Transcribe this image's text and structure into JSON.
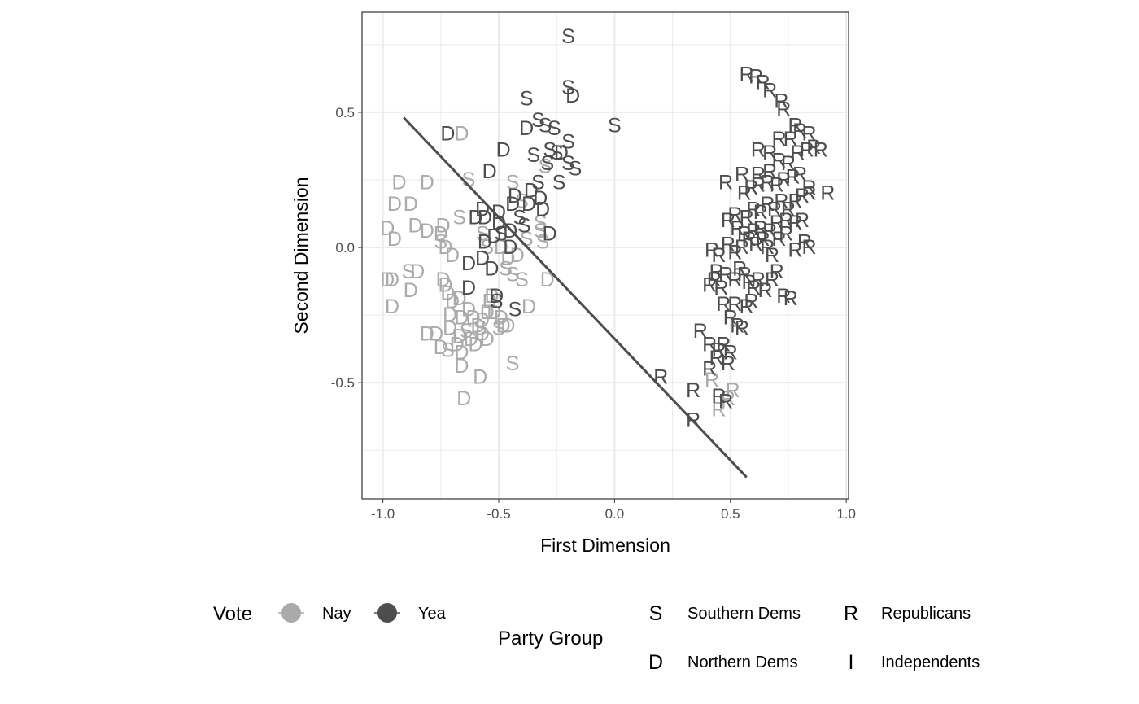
{
  "chart_data": {
    "type": "scatter",
    "title": "",
    "xlabel": "First Dimension",
    "ylabel": "Second Dimension",
    "xlim": [
      -1.09,
      1.01
    ],
    "ylim": [
      -0.93,
      0.87
    ],
    "xticks": [
      -1.0,
      -0.5,
      0.0,
      0.5,
      1.0
    ],
    "xtick_labels": [
      "-1.0",
      "-0.5",
      "0.0",
      "0.5",
      "1.0"
    ],
    "yticks": [
      -0.5,
      0.0,
      0.5
    ],
    "ytick_labels": [
      "-0.5",
      "0.0",
      "0.5"
    ],
    "grid": true,
    "colors": {
      "Nay": "#aaaaaa",
      "Yea": "#4d4d4d",
      "line": "#4d4d4d",
      "panel_border": "#333333",
      "grid": "#ebebeb"
    },
    "cutting_line": [
      [
        -0.91,
        0.48
      ],
      [
        0.57,
        -0.85
      ]
    ],
    "legend": {
      "position": "bottom",
      "vote": {
        "title": "Vote",
        "items": [
          "Nay",
          "Yea"
        ]
      },
      "party": {
        "title": "Party Group",
        "items": [
          {
            "symbol": "S",
            "label": "Southern Dems"
          },
          {
            "symbol": "R",
            "label": "Republicans"
          },
          {
            "symbol": "D",
            "label": "Northern Dems"
          },
          {
            "symbol": "I",
            "label": "Independents"
          }
        ]
      }
    },
    "series": [
      {
        "name": "Nay",
        "color": "#aaaaaa",
        "points": [
          [
            "D",
            -0.66,
            0.42
          ],
          [
            "D",
            -0.93,
            0.24
          ],
          [
            "D",
            -0.81,
            0.24
          ],
          [
            "S",
            -0.63,
            0.25
          ],
          [
            "D",
            -0.95,
            0.16
          ],
          [
            "D",
            -0.88,
            0.16
          ],
          [
            "S",
            -0.67,
            0.11
          ],
          [
            "D",
            -0.75,
            0.05
          ],
          [
            "D",
            -0.74,
            0.08
          ],
          [
            "D",
            -0.86,
            0.08
          ],
          [
            "D",
            -0.98,
            0.07
          ],
          [
            "D",
            -0.95,
            0.03
          ],
          [
            "D",
            -0.81,
            0.06
          ],
          [
            "D",
            -0.73,
            0.0
          ],
          [
            "S",
            -0.75,
            0.02
          ],
          [
            "D",
            -0.7,
            -0.03
          ],
          [
            "S",
            -0.89,
            -0.09
          ],
          [
            "D",
            -0.85,
            -0.09
          ],
          [
            "D",
            -0.96,
            -0.12
          ],
          [
            "D",
            -0.98,
            -0.12
          ],
          [
            "D",
            -0.88,
            -0.16
          ],
          [
            "D",
            -0.96,
            -0.22
          ],
          [
            "D",
            -0.74,
            -0.12
          ],
          [
            "D",
            -0.73,
            -0.14
          ],
          [
            "D",
            -0.72,
            -0.17
          ],
          [
            "D",
            -0.7,
            -0.2
          ],
          [
            "D",
            -0.67,
            -0.19
          ],
          [
            "D",
            -0.71,
            -0.25
          ],
          [
            "D",
            -0.66,
            -0.26
          ],
          [
            "D",
            -0.63,
            -0.23
          ],
          [
            "D",
            -0.61,
            -0.26
          ],
          [
            "D",
            -0.59,
            -0.29
          ],
          [
            "D",
            -0.57,
            -0.27
          ],
          [
            "D",
            -0.55,
            -0.24
          ],
          [
            "D",
            -0.54,
            -0.2
          ],
          [
            "D",
            -0.53,
            -0.18
          ],
          [
            "D",
            -0.52,
            -0.24
          ],
          [
            "D",
            -0.49,
            -0.26
          ],
          [
            "D",
            -0.48,
            -0.29
          ],
          [
            "D",
            -0.46,
            -0.29
          ],
          [
            "D",
            -0.71,
            -0.3
          ],
          [
            "D",
            -0.67,
            -0.33
          ],
          [
            "D",
            -0.62,
            -0.34
          ],
          [
            "D",
            -0.6,
            -0.36
          ],
          [
            "D",
            -0.57,
            -0.32
          ],
          [
            "D",
            -0.55,
            -0.34
          ],
          [
            "S",
            -0.64,
            -0.31
          ],
          [
            "S",
            -0.58,
            -0.3
          ],
          [
            "S",
            -0.5,
            -0.3
          ],
          [
            "D",
            -0.68,
            -0.36
          ],
          [
            "D",
            -0.66,
            -0.39
          ],
          [
            "S",
            -0.72,
            -0.38
          ],
          [
            "D",
            -0.75,
            -0.37
          ],
          [
            "D",
            -0.77,
            -0.32
          ],
          [
            "D",
            -0.81,
            -0.32
          ],
          [
            "D",
            -0.66,
            -0.44
          ],
          [
            "D",
            -0.58,
            -0.48
          ],
          [
            "D",
            -0.65,
            -0.56
          ],
          [
            "S",
            -0.44,
            -0.43
          ],
          [
            "S",
            -0.57,
            0.05
          ],
          [
            "S",
            -0.55,
            0.0
          ],
          [
            "D",
            -0.49,
            0.0
          ],
          [
            "D",
            -0.46,
            -0.04
          ],
          [
            "S",
            -0.47,
            -0.08
          ],
          [
            "S",
            -0.44,
            -0.1
          ],
          [
            "S",
            -0.4,
            -0.12
          ],
          [
            "S",
            -0.38,
            0.03
          ],
          [
            "S",
            -0.32,
            0.09
          ],
          [
            "S",
            -0.31,
            0.02
          ],
          [
            "D",
            -0.29,
            -0.12
          ],
          [
            "D",
            -0.37,
            -0.22
          ],
          [
            "D",
            -0.42,
            -0.03
          ],
          [
            "S",
            -0.44,
            0.24
          ],
          [
            "S",
            -0.4,
            0.17
          ],
          [
            "S",
            -0.3,
            0.3
          ],
          [
            "S",
            -0.32,
            0.06
          ],
          [
            "R",
            0.42,
            -0.49
          ],
          [
            "R",
            0.45,
            -0.6
          ],
          [
            "R",
            0.49,
            -0.56
          ],
          [
            "R",
            0.51,
            -0.53
          ]
        ]
      },
      {
        "name": "Yea",
        "color": "#4d4d4d",
        "points": [
          [
            "S",
            -0.2,
            0.78
          ],
          [
            "S",
            -0.2,
            0.59
          ],
          [
            "D",
            -0.18,
            0.56
          ],
          [
            "S",
            -0.38,
            0.55
          ],
          [
            "S",
            -0.33,
            0.47
          ],
          [
            "S",
            -0.3,
            0.45
          ],
          [
            "D",
            -0.38,
            0.44
          ],
          [
            "S",
            -0.26,
            0.44
          ],
          [
            "S",
            -0.2,
            0.39
          ],
          [
            "S",
            0.0,
            0.45
          ],
          [
            "D",
            -0.72,
            0.42
          ],
          [
            "D",
            -0.48,
            0.36
          ],
          [
            "S",
            -0.35,
            0.34
          ],
          [
            "S",
            -0.28,
            0.36
          ],
          [
            "S",
            -0.25,
            0.35
          ],
          [
            "D",
            -0.23,
            0.35
          ],
          [
            "S",
            -0.29,
            0.31
          ],
          [
            "S",
            -0.2,
            0.31
          ],
          [
            "S",
            -0.17,
            0.29
          ],
          [
            "D",
            -0.54,
            0.28
          ],
          [
            "S",
            -0.33,
            0.24
          ],
          [
            "D",
            -0.36,
            0.21
          ],
          [
            "D",
            -0.43,
            0.19
          ],
          [
            "S",
            -0.24,
            0.24
          ],
          [
            "D",
            -0.32,
            0.18
          ],
          [
            "D",
            -0.37,
            0.16
          ],
          [
            "D",
            -0.44,
            0.16
          ],
          [
            "D",
            -0.5,
            0.13
          ],
          [
            "D",
            -0.57,
            0.14
          ],
          [
            "D",
            -0.56,
            0.11
          ],
          [
            "D",
            -0.6,
            0.11
          ],
          [
            "D",
            -0.5,
            0.09
          ],
          [
            "S",
            -0.41,
            0.11
          ],
          [
            "S",
            -0.39,
            0.08
          ],
          [
            "D",
            -0.31,
            0.14
          ],
          [
            "D",
            -0.45,
            0.06
          ],
          [
            "D",
            -0.52,
            0.04
          ],
          [
            "S",
            -0.49,
            0.05
          ],
          [
            "D",
            -0.56,
            0.02
          ],
          [
            "D",
            -0.28,
            0.05
          ],
          [
            "D",
            -0.45,
            0.0
          ],
          [
            "D",
            -0.57,
            -0.04
          ],
          [
            "D",
            -0.63,
            -0.06
          ],
          [
            "D",
            -0.53,
            -0.08
          ],
          [
            "D",
            -0.63,
            -0.15
          ],
          [
            "D",
            -0.51,
            -0.18
          ],
          [
            "S",
            -0.43,
            -0.23
          ],
          [
            "S",
            -0.51,
            -0.2
          ],
          [
            "R",
            0.2,
            -0.48
          ],
          [
            "R",
            0.34,
            -0.53
          ],
          [
            "R",
            0.34,
            -0.64
          ],
          [
            "R",
            0.45,
            -0.55
          ],
          [
            "R",
            0.48,
            -0.57
          ],
          [
            "R",
            0.41,
            -0.45
          ],
          [
            "R",
            0.44,
            -0.41
          ],
          [
            "R",
            0.49,
            -0.43
          ],
          [
            "R",
            0.37,
            -0.31
          ],
          [
            "R",
            0.41,
            -0.36
          ],
          [
            "R",
            0.45,
            -0.38
          ],
          [
            "R",
            0.47,
            -0.36
          ],
          [
            "R",
            0.5,
            -0.39
          ],
          [
            "R",
            0.53,
            -0.29
          ],
          [
            "R",
            0.55,
            -0.3
          ],
          [
            "R",
            0.5,
            -0.26
          ],
          [
            "R",
            0.47,
            -0.21
          ],
          [
            "R",
            0.52,
            -0.21
          ],
          [
            "R",
            0.57,
            -0.22
          ],
          [
            "R",
            0.59,
            -0.2
          ],
          [
            "R",
            0.46,
            -0.15
          ],
          [
            "R",
            0.43,
            -0.12
          ],
          [
            "R",
            0.41,
            -0.14
          ],
          [
            "R",
            0.44,
            -0.09
          ],
          [
            "R",
            0.48,
            -0.1
          ],
          [
            "R",
            0.52,
            -0.12
          ],
          [
            "R",
            0.54,
            -0.08
          ],
          [
            "R",
            0.56,
            -0.1
          ],
          [
            "R",
            0.58,
            -0.13
          ],
          [
            "R",
            0.6,
            -0.15
          ],
          [
            "R",
            0.62,
            -0.12
          ],
          [
            "R",
            0.65,
            -0.16
          ],
          [
            "R",
            0.68,
            -0.12
          ],
          [
            "R",
            0.7,
            -0.09
          ],
          [
            "R",
            0.73,
            -0.18
          ],
          [
            "R",
            0.76,
            -0.19
          ],
          [
            "R",
            0.42,
            -0.01
          ],
          [
            "R",
            0.45,
            -0.03
          ],
          [
            "R",
            0.49,
            0.01
          ],
          [
            "R",
            0.52,
            -0.02
          ],
          [
            "R",
            0.55,
            0.0
          ],
          [
            "R",
            0.58,
            0.03
          ],
          [
            "R",
            0.61,
            0.01
          ],
          [
            "R",
            0.64,
            0.03
          ],
          [
            "R",
            0.66,
            0.0
          ],
          [
            "R",
            0.68,
            -0.03
          ],
          [
            "R",
            0.71,
            0.03
          ],
          [
            "R",
            0.74,
            0.05
          ],
          [
            "R",
            0.78,
            -0.01
          ],
          [
            "R",
            0.82,
            0.02
          ],
          [
            "R",
            0.84,
            0.0
          ],
          [
            "R",
            0.78,
            0.09
          ],
          [
            "R",
            0.81,
            0.1
          ],
          [
            "R",
            0.74,
            0.1
          ],
          [
            "R",
            0.7,
            0.09
          ],
          [
            "R",
            0.67,
            0.06
          ],
          [
            "R",
            0.63,
            0.07
          ],
          [
            "R",
            0.6,
            0.06
          ],
          [
            "R",
            0.56,
            0.05
          ],
          [
            "R",
            0.53,
            0.07
          ],
          [
            "R",
            0.49,
            0.1
          ],
          [
            "R",
            0.52,
            0.12
          ],
          [
            "R",
            0.57,
            0.11
          ],
          [
            "R",
            0.6,
            0.14
          ],
          [
            "R",
            0.63,
            0.13
          ],
          [
            "R",
            0.66,
            0.16
          ],
          [
            "R",
            0.69,
            0.14
          ],
          [
            "R",
            0.72,
            0.17
          ],
          [
            "R",
            0.75,
            0.14
          ],
          [
            "R",
            0.78,
            0.17
          ],
          [
            "R",
            0.81,
            0.19
          ],
          [
            "R",
            0.84,
            0.2
          ],
          [
            "R",
            0.92,
            0.2
          ],
          [
            "R",
            0.56,
            0.2
          ],
          [
            "R",
            0.59,
            0.22
          ],
          [
            "R",
            0.62,
            0.23
          ],
          [
            "R",
            0.66,
            0.24
          ],
          [
            "R",
            0.7,
            0.23
          ],
          [
            "R",
            0.73,
            0.25
          ],
          [
            "R",
            0.77,
            0.26
          ],
          [
            "R",
            0.8,
            0.27
          ],
          [
            "R",
            0.84,
            0.22
          ],
          [
            "R",
            0.48,
            0.24
          ],
          [
            "R",
            0.55,
            0.27
          ],
          [
            "R",
            0.62,
            0.27
          ],
          [
            "R",
            0.67,
            0.28
          ],
          [
            "R",
            0.71,
            0.32
          ],
          [
            "R",
            0.75,
            0.31
          ],
          [
            "R",
            0.79,
            0.35
          ],
          [
            "R",
            0.83,
            0.36
          ],
          [
            "R",
            0.86,
            0.37
          ],
          [
            "R",
            0.89,
            0.36
          ],
          [
            "R",
            0.62,
            0.36
          ],
          [
            "R",
            0.67,
            0.35
          ],
          [
            "R",
            0.71,
            0.4
          ],
          [
            "R",
            0.76,
            0.4
          ],
          [
            "R",
            0.8,
            0.43
          ],
          [
            "R",
            0.84,
            0.42
          ],
          [
            "R",
            0.78,
            0.45
          ],
          [
            "R",
            0.73,
            0.51
          ],
          [
            "R",
            0.72,
            0.54
          ],
          [
            "R",
            0.67,
            0.58
          ],
          [
            "R",
            0.64,
            0.61
          ],
          [
            "R",
            0.61,
            0.63
          ],
          [
            "R",
            0.57,
            0.64
          ]
        ]
      }
    ]
  }
}
